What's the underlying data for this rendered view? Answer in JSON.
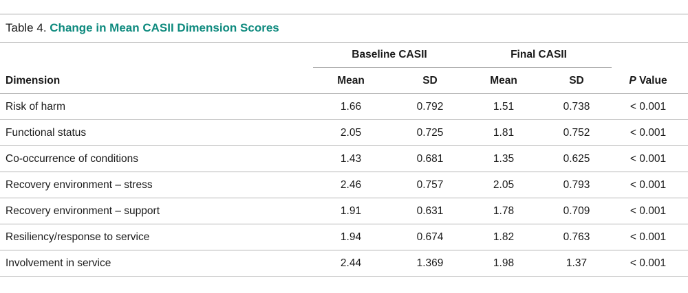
{
  "table": {
    "label": "Table 4.",
    "title": "Change in Mean CASII Dimension Scores",
    "group_headers": {
      "baseline": "Baseline CASII",
      "final": "Final CASII"
    },
    "columns": {
      "dimension": "Dimension",
      "baseline_mean": "Mean",
      "baseline_sd": "SD",
      "final_mean": "Mean",
      "final_sd": "SD",
      "p_italic": "P",
      "p_rest": " Value"
    },
    "rows": [
      {
        "dimension": "Risk of harm",
        "baseline_mean": "1.66",
        "baseline_sd": "0.792",
        "final_mean": "1.51",
        "final_sd": "0.738",
        "p": "< 0.001"
      },
      {
        "dimension": "Functional status",
        "baseline_mean": "2.05",
        "baseline_sd": "0.725",
        "final_mean": "1.81",
        "final_sd": "0.752",
        "p": "< 0.001"
      },
      {
        "dimension": "Co-occurrence of conditions",
        "baseline_mean": "1.43",
        "baseline_sd": "0.681",
        "final_mean": "1.35",
        "final_sd": "0.625",
        "p": "< 0.001"
      },
      {
        "dimension": "Recovery environment – stress",
        "baseline_mean": "2.46",
        "baseline_sd": "0.757",
        "final_mean": "2.05",
        "final_sd": "0.793",
        "p": "< 0.001"
      },
      {
        "dimension": "Recovery environment – support",
        "baseline_mean": "1.91",
        "baseline_sd": "0.631",
        "final_mean": "1.78",
        "final_sd": "0.709",
        "p": "< 0.001"
      },
      {
        "dimension": "Resiliency/response to service",
        "baseline_mean": "1.94",
        "baseline_sd": "0.674",
        "final_mean": "1.82",
        "final_sd": "0.763",
        "p": "< 0.001"
      },
      {
        "dimension": "Involvement in service",
        "baseline_mean": "2.44",
        "baseline_sd": "1.369",
        "final_mean": "1.98",
        "final_sd": "1.37",
        "p": "< 0.001"
      }
    ],
    "colors": {
      "title": "#0e8a7e",
      "rule": "#a8a8a8",
      "text": "#1a1a1a"
    }
  }
}
